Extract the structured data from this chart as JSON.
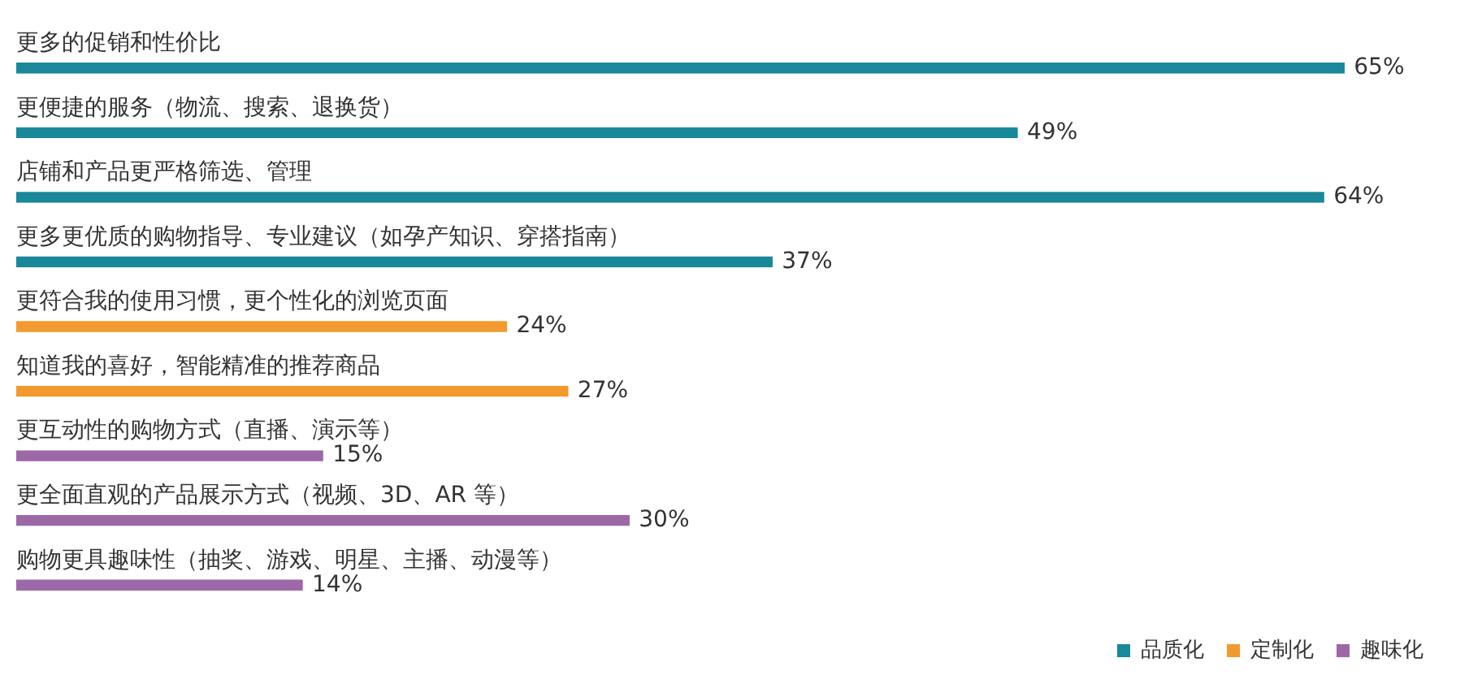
{
  "chart_data": {
    "type": "bar",
    "orientation": "horizontal",
    "stacked": true,
    "legend": "bottom right",
    "categories": [
      "更多的促销和性价比",
      "更便捷的服务（物流、搜索、退换货）",
      "店铺和产品更严格筛选、管理",
      "更多更优质的购物指导、专业建议（如孕产知识、穿搭指南）",
      "更符合我的使用习惯，更个性化的浏览页面",
      "知道我的喜好，智能精准的推荐商品",
      "更互动性的购物方式（直播、演示等）",
      "更全面直观的产品展示方式（视频、3D、AR 等）",
      "购物更具趣味性（抽奖、游戏、明星、主播、动漫等）"
    ],
    "series": [
      {
        "name": "品质化",
        "color": "#19889a",
        "values": [
          65,
          49,
          64,
          37,
          null,
          null,
          null,
          null,
          null
        ],
        "value_labels": [
          "65%",
          "49%",
          "64%",
          "37%",
          null,
          null,
          null,
          null,
          null
        ]
      },
      {
        "name": "定制化",
        "color": "#f29a2e",
        "values": [
          null,
          null,
          null,
          null,
          24,
          27,
          null,
          null,
          null
        ],
        "value_labels": [
          null,
          null,
          null,
          null,
          "24%",
          "27%",
          null,
          null,
          null
        ]
      },
      {
        "name": "趣味化",
        "color": "#9c68a8",
        "values": [
          null,
          null,
          null,
          null,
          null,
          null,
          15,
          30,
          14
        ],
        "value_labels": [
          null,
          null,
          null,
          null,
          null,
          null,
          "15%",
          "30%",
          "14%"
        ]
      }
    ]
  }
}
